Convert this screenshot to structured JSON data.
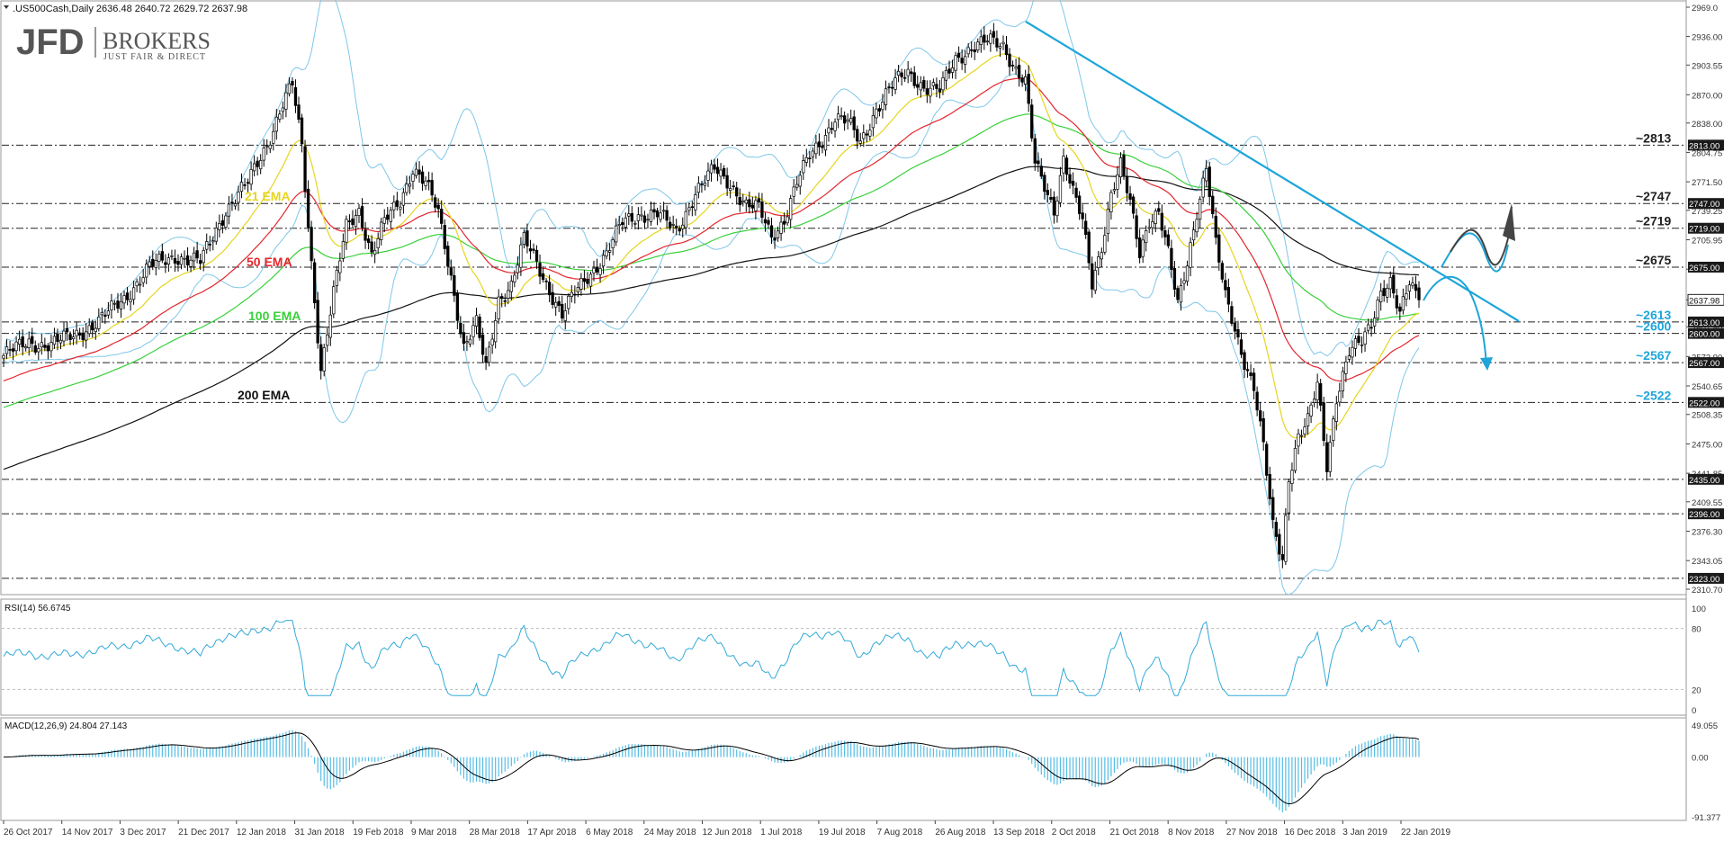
{
  "header": {
    "symbol_line": ".US500Cash,Daily  2636.48 2640.72 2629.72 2637.98"
  },
  "logo": {
    "mark": "JFD",
    "name": "BROKERS",
    "tagline": "JUST FAIR & DIRECT"
  },
  "colors": {
    "background": "#ffffff",
    "candle": "#000000",
    "ema21": "#e6d51e",
    "ema50": "#e3262d",
    "ema100": "#39d03a",
    "ema200": "#111111",
    "bollinger": "#7fc7e8",
    "trendline": "#1ea5d9",
    "level_label_dark": "#222222",
    "level_label_blue": "#1ea5d9",
    "rsi_line": "#33aad8",
    "macd_hist": "#56bde4",
    "macd_signal": "#000000",
    "price_tag_bg": "#1a1a1a"
  },
  "chart_data": {
    "type": "line",
    "title": ".US500Cash,Daily",
    "ohlc_last": {
      "open": 2636.48,
      "high": 2640.72,
      "low": 2629.72,
      "close": 2637.98
    },
    "price_axis": {
      "ylim": [
        2310.7,
        2969.0
      ],
      "ticks": [
        "2969.0",
        "2936.00",
        "2903.55",
        "2870.00",
        "2838.00",
        "2804.75",
        "2771.50",
        "2739.25",
        "2705.95",
        "2672.70",
        "2637.98",
        "2607.50",
        "2573.90",
        "2540.65",
        "2508.35",
        "2475.00",
        "2441.85",
        "2409.55",
        "2376.30",
        "2343.05",
        "2310.70"
      ],
      "tick_values": [
        2969.0,
        2936.0,
        2903.55,
        2870.0,
        2838.0,
        2804.75,
        2771.5,
        2739.25,
        2705.95,
        2672.7,
        2637.98,
        2607.5,
        2573.9,
        2540.65,
        2508.35,
        2475.0,
        2441.85,
        2409.55,
        2376.3,
        2343.05,
        2310.7
      ]
    },
    "x_labels": [
      "26 Oct 2017",
      "14 Nov 2017",
      "3 Dec 2017",
      "21 Dec 2017",
      "12 Jan 2018",
      "31 Jan 2018",
      "19 Feb 2018",
      "9 Mar 2018",
      "28 Mar 2018",
      "17 Apr 2018",
      "6 May 2018",
      "24 May 2018",
      "12 Jun 2018",
      "1 Jul 2018",
      "19 Jul 2018",
      "7 Aug 2018",
      "26 Aug 2018",
      "13 Sep 2018",
      "2 Oct 2018",
      "21 Oct 2018",
      "8 Nov 2018",
      "27 Nov 2018",
      "16 Dec 2018",
      "3 Jan 2019",
      "22 Jan 2019"
    ],
    "levels": [
      {
        "value": 2813,
        "label": "~2813",
        "tag": "2813.00",
        "color": "dark"
      },
      {
        "value": 2747,
        "label": "~2747",
        "tag": "2747.00",
        "color": "dark"
      },
      {
        "value": 2719,
        "label": "~2719",
        "tag": "2719.00",
        "color": "dark"
      },
      {
        "value": 2675,
        "label": "~2675",
        "tag": "2675.00",
        "color": "dark"
      },
      {
        "value": 2613,
        "label": "~2613",
        "tag": "2613.00",
        "color": "blue"
      },
      {
        "value": 2600,
        "label": "~2600",
        "tag": "2600.00",
        "color": "blue"
      },
      {
        "value": 2567,
        "label": "~2567",
        "tag": "2567.00",
        "color": "blue"
      },
      {
        "value": 2522,
        "label": "~2522",
        "tag": "2522.00",
        "color": "blue"
      },
      {
        "value": 2435,
        "label": "",
        "tag": "2435.00",
        "color": "none"
      },
      {
        "value": 2396,
        "label": "",
        "tag": "2396.00",
        "color": "none"
      },
      {
        "value": 2323,
        "label": "",
        "tag": "2323.00",
        "color": "none"
      }
    ],
    "last_price_tag": "2637.98",
    "last_price": 2637.98,
    "series": [
      {
        "name": "21 EMA",
        "label": "21 EMA",
        "color_key": "ema21"
      },
      {
        "name": "50 EMA",
        "label": "50 EMA",
        "color_key": "ema50"
      },
      {
        "name": "100 EMA",
        "label": "100 EMA",
        "color_key": "ema100"
      },
      {
        "name": "200 EMA",
        "label": "200 EMA",
        "color_key": "ema200"
      }
    ],
    "close_path": [
      [
        0,
        2575
      ],
      [
        8,
        2590
      ],
      [
        15,
        2587
      ],
      [
        22,
        2598
      ],
      [
        30,
        2613
      ],
      [
        38,
        2640
      ],
      [
        46,
        2675
      ],
      [
        54,
        2688
      ],
      [
        62,
        2680
      ],
      [
        70,
        2740
      ],
      [
        77,
        2770
      ],
      [
        83,
        2815
      ],
      [
        88,
        2860
      ],
      [
        91,
        2880
      ],
      [
        94,
        2810
      ],
      [
        97,
        2680
      ],
      [
        100,
        2560
      ],
      [
        104,
        2645
      ],
      [
        108,
        2720
      ],
      [
        112,
        2740
      ],
      [
        116,
        2690
      ],
      [
        120,
        2725
      ],
      [
        125,
        2750
      ],
      [
        129,
        2788
      ],
      [
        133,
        2770
      ],
      [
        137,
        2735
      ],
      [
        141,
        2665
      ],
      [
        145,
        2585
      ],
      [
        149,
        2610
      ],
      [
        152,
        2560
      ],
      [
        156,
        2640
      ],
      [
        160,
        2655
      ],
      [
        164,
        2705
      ],
      [
        168,
        2680
      ],
      [
        172,
        2650
      ],
      [
        176,
        2620
      ],
      [
        180,
        2645
      ],
      [
        184,
        2665
      ],
      [
        190,
        2690
      ],
      [
        195,
        2725
      ],
      [
        200,
        2735
      ],
      [
        206,
        2735
      ],
      [
        212,
        2715
      ],
      [
        218,
        2760
      ],
      [
        224,
        2785
      ],
      [
        229,
        2770
      ],
      [
        234,
        2745
      ],
      [
        238,
        2740
      ],
      [
        242,
        2710
      ],
      [
        246,
        2730
      ],
      [
        250,
        2770
      ],
      [
        254,
        2800
      ],
      [
        258,
        2820
      ],
      [
        262,
        2845
      ],
      [
        266,
        2838
      ],
      [
        270,
        2815
      ],
      [
        275,
        2855
      ],
      [
        280,
        2880
      ],
      [
        285,
        2895
      ],
      [
        290,
        2880
      ],
      [
        295,
        2874
      ],
      [
        300,
        2910
      ],
      [
        305,
        2925
      ],
      [
        310,
        2930
      ],
      [
        315,
        2925
      ],
      [
        319,
        2900
      ],
      [
        322,
        2885
      ],
      [
        325,
        2790
      ],
      [
        328,
        2765
      ],
      [
        331,
        2740
      ],
      [
        334,
        2800
      ],
      [
        337,
        2760
      ],
      [
        340,
        2725
      ],
      [
        343,
        2655
      ],
      [
        346,
        2700
      ],
      [
        349,
        2760
      ],
      [
        352,
        2790
      ],
      [
        355,
        2745
      ],
      [
        358,
        2690
      ],
      [
        361,
        2730
      ],
      [
        364,
        2740
      ],
      [
        367,
        2690
      ],
      [
        370,
        2630
      ],
      [
        373,
        2680
      ],
      [
        376,
        2740
      ],
      [
        379,
        2790
      ],
      [
        382,
        2700
      ],
      [
        385,
        2640
      ],
      [
        388,
        2605
      ],
      [
        391,
        2570
      ],
      [
        394,
        2540
      ],
      [
        397,
        2470
      ],
      [
        400,
        2380
      ],
      [
        403,
        2345
      ],
      [
        405,
        2440
      ],
      [
        408,
        2485
      ],
      [
        411,
        2500
      ],
      [
        414,
        2540
      ],
      [
        417,
        2450
      ],
      [
        420,
        2530
      ],
      [
        424,
        2580
      ],
      [
        428,
        2588
      ],
      [
        431,
        2610
      ],
      [
        434,
        2650
      ],
      [
        437,
        2660
      ],
      [
        440,
        2620
      ],
      [
        443,
        2655
      ],
      [
        446,
        2638
      ]
    ],
    "rsi": {
      "label": "RSI(14) 56.6745",
      "value": 56.6745,
      "ylim": [
        0,
        100
      ],
      "ticks": [
        "100",
        "80",
        "20",
        "0"
      ],
      "tick_values": [
        100,
        80,
        20,
        0
      ]
    },
    "macd": {
      "label": "MACD(12,26,9) 24.804 27.143",
      "macd": 24.804,
      "signal": 27.143,
      "ticks": [
        "49.055",
        "0.00",
        "-91.377"
      ],
      "tick_values": [
        49.055,
        0.0,
        -91.377
      ]
    }
  }
}
